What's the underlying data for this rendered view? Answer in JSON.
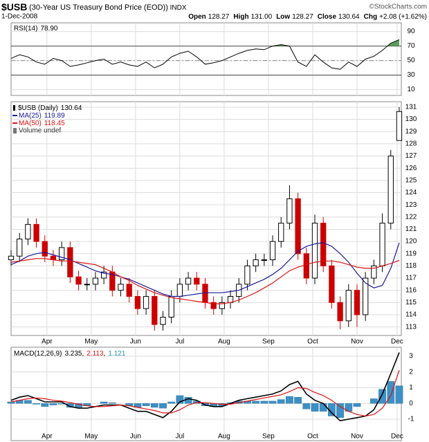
{
  "header": {
    "symbol": "$USB",
    "description": "(30-Year US Treasury Bond Price (EOD))",
    "exchange": "INDX",
    "credit": "©StockCharts.com",
    "date": "1-Dec-2008",
    "quote": [
      {
        "label": "Open",
        "value": "128.27"
      },
      {
        "label": "High",
        "value": "131.00"
      },
      {
        "label": "Low",
        "value": "128.27"
      },
      {
        "label": "Close",
        "value": "130.64"
      },
      {
        "label": "Chg",
        "value": "+2.08 (+1.62%)"
      }
    ]
  },
  "chart_data": [
    {
      "type": "line",
      "legend": "RSI(14)",
      "value_label": "78.90",
      "x": [
        0,
        4,
        8,
        12,
        16,
        20,
        24,
        28,
        32,
        36,
        40,
        44,
        48,
        52,
        56,
        60,
        64,
        68,
        72,
        76,
        80,
        84,
        88,
        92,
        96,
        100,
        104,
        108,
        112,
        116,
        120,
        124,
        128,
        132,
        136,
        140,
        144,
        148,
        152,
        156,
        160,
        164,
        168,
        172,
        176,
        180,
        184
      ],
      "xlim": [
        0,
        185
      ],
      "xticks": [
        17,
        38,
        59,
        80,
        101,
        122,
        143,
        164,
        183
      ],
      "ylim": [
        2,
        102
      ],
      "yticks": [
        10,
        30,
        50,
        70,
        90
      ],
      "grid": true,
      "ref_lines": [
        {
          "value": 70,
          "style": "solid"
        },
        {
          "value": 50,
          "style": "dashed"
        },
        {
          "value": 30,
          "style": "solid"
        }
      ],
      "overbought_fill": "#5c9e5c",
      "series": [
        {
          "color": "#000000",
          "values": [
            53,
            58,
            55,
            48,
            45,
            53,
            50,
            42,
            44,
            47,
            50,
            52,
            45,
            48,
            44,
            42,
            48,
            40,
            45,
            55,
            60,
            63,
            55,
            45,
            47,
            50,
            55,
            60,
            64,
            66,
            65,
            70,
            72,
            70,
            48,
            42,
            58,
            48,
            40,
            38,
            48,
            42,
            52,
            56,
            64,
            74,
            78.9
          ]
        }
      ]
    },
    {
      "type": "candlestick",
      "legend": "$USB (Daily)",
      "volume_label": "Volume undef",
      "x": [
        0,
        4,
        8,
        12,
        16,
        20,
        24,
        28,
        32,
        36,
        40,
        44,
        48,
        52,
        56,
        60,
        64,
        68,
        72,
        76,
        80,
        84,
        88,
        92,
        96,
        100,
        104,
        108,
        112,
        116,
        120,
        124,
        128,
        132,
        136,
        140,
        144,
        148,
        152,
        156,
        160,
        164,
        168,
        172,
        176,
        180,
        184
      ],
      "xlim": [
        0,
        185
      ],
      "xticks": [
        {
          "value": 17,
          "label": "Apr"
        },
        {
          "value": 38,
          "label": "May"
        },
        {
          "value": 59,
          "label": "Jun"
        },
        {
          "value": 80,
          "label": "Jul"
        },
        {
          "value": 101,
          "label": "Aug"
        },
        {
          "value": 122,
          "label": "Sep"
        },
        {
          "value": 143,
          "label": "Oct"
        },
        {
          "value": 164,
          "label": "Nov"
        },
        {
          "value": 183,
          "label": "Dec"
        }
      ],
      "ylim": [
        112.3,
        131.45
      ],
      "yticks": [
        113,
        114,
        115,
        116,
        117,
        118,
        119,
        120,
        121,
        122,
        123,
        124,
        125,
        126,
        127,
        128,
        129,
        130,
        131
      ],
      "grid": true,
      "up_color": "#000000",
      "down_color": "#cc0000",
      "open": [
        118.5,
        118.8,
        120.2,
        121.4,
        120,
        118.8,
        118.5,
        119.5,
        117.1,
        116.5,
        116.5,
        117,
        117.5,
        116,
        116.5,
        115.5,
        114.5,
        115.5,
        113.2,
        113.8,
        115.5,
        116.5,
        117,
        116.5,
        115,
        114.5,
        115,
        115.5,
        116.5,
        118,
        118.5,
        118.5,
        120,
        121.5,
        123.5,
        119,
        117,
        121.5,
        118,
        115,
        113.5,
        116,
        114,
        117,
        118,
        121.5,
        128.27
      ],
      "high": [
        119.3,
        120.7,
        121.9,
        121.9,
        120.5,
        119.3,
        120,
        120,
        117.6,
        117,
        117.5,
        118,
        118,
        117,
        117,
        116,
        116,
        116,
        114.3,
        116,
        117,
        117.5,
        117.5,
        117,
        115.5,
        115.5,
        116,
        117,
        118.5,
        119,
        119,
        120.5,
        122,
        124.6,
        124,
        119.5,
        122.2,
        122,
        118.5,
        115.5,
        116.5,
        116.5,
        117.5,
        118.5,
        122.3,
        127.5,
        131
      ],
      "low": [
        118,
        118.3,
        119.7,
        119.5,
        118.3,
        118,
        118,
        116.6,
        116,
        116,
        116,
        116.5,
        115.5,
        115.5,
        115,
        114,
        114,
        112.7,
        112.7,
        113.3,
        115,
        116,
        116,
        114.5,
        114,
        114,
        114.5,
        115,
        116,
        117.5,
        118,
        118,
        119.5,
        121,
        118.5,
        116.5,
        116.5,
        117.5,
        114.5,
        112.8,
        113,
        113,
        113.5,
        116.5,
        117.5,
        121,
        128.27
      ],
      "close": [
        118.8,
        120.2,
        121.4,
        120,
        118.8,
        118.5,
        119.5,
        117.1,
        116.5,
        116.5,
        117,
        117.5,
        116,
        116.5,
        115.5,
        114.5,
        115.5,
        113.2,
        113.8,
        115.5,
        116.5,
        117,
        116.5,
        115,
        114.5,
        115,
        115.5,
        116.5,
        118,
        118.5,
        118.5,
        120,
        121.5,
        123.5,
        119,
        117,
        121.5,
        118,
        115,
        113.5,
        116,
        114,
        117,
        118,
        121.5,
        127,
        130.64
      ],
      "series": [
        {
          "name": "MA(25)",
          "color": "#1a1a99",
          "values": [
            118.1,
            118.4,
            118.8,
            119.0,
            119.1,
            118.9,
            118.7,
            118.5,
            118.2,
            117.9,
            117.6,
            117.4,
            117.3,
            117.1,
            116.9,
            116.6,
            116.3,
            116.0,
            115.7,
            115.5,
            115.5,
            115.6,
            115.7,
            115.8,
            115.8,
            115.8,
            115.9,
            116.0,
            116.3,
            116.6,
            116.9,
            117.3,
            117.8,
            118.5,
            119.2,
            119.6,
            119.8,
            119.9,
            119.6,
            119.0,
            118.3,
            117.4,
            116.6,
            116.2,
            116.4,
            117.8,
            119.89
          ]
        },
        {
          "name": "MA(50)",
          "color": "#dd1111",
          "values": [
            118.3,
            118.4,
            118.5,
            118.6,
            118.6,
            118.5,
            118.4,
            118.4,
            118.3,
            118.2,
            118.1,
            117.8,
            117.5,
            117.1,
            116.8,
            116.4,
            116.1,
            115.8,
            115.6,
            115.4,
            115.3,
            115.2,
            115.1,
            115.0,
            114.9,
            114.9,
            115.0,
            115.2,
            115.5,
            115.8,
            116.2,
            116.6,
            117.1,
            117.6,
            117.9,
            118.1,
            118.3,
            118.4,
            118.4,
            118.3,
            118.1,
            117.9,
            117.8,
            117.8,
            118.0,
            118.2,
            118.45
          ]
        }
      ]
    },
    {
      "type": "macd",
      "legend": "MACD(12,26,9)",
      "separator": ",",
      "x": [
        0,
        4,
        8,
        12,
        16,
        20,
        24,
        28,
        32,
        36,
        40,
        44,
        48,
        52,
        56,
        60,
        64,
        68,
        72,
        76,
        80,
        84,
        88,
        92,
        96,
        100,
        104,
        108,
        112,
        116,
        120,
        124,
        128,
        132,
        136,
        140,
        144,
        148,
        152,
        156,
        160,
        164,
        168,
        172,
        176,
        180,
        184
      ],
      "xlim": [
        0,
        185
      ],
      "xticks": [
        {
          "value": 17,
          "label": "Apr"
        },
        {
          "value": 38,
          "label": "May"
        },
        {
          "value": 59,
          "label": "Jun"
        },
        {
          "value": 80,
          "label": "Jul"
        },
        {
          "value": 101,
          "label": "Aug"
        },
        {
          "value": 122,
          "label": "Sep"
        },
        {
          "value": 143,
          "label": "Oct"
        },
        {
          "value": 164,
          "label": "Nov"
        },
        {
          "value": 183,
          "label": "Dec"
        }
      ],
      "ylim": [
        -2.36,
        3.57
      ],
      "yticks": [
        -1,
        0,
        1,
        2,
        3
      ],
      "grid": true,
      "series": [
        {
          "kind": "bar",
          "color": "#3d8fc4",
          "label_color": "#1f9a9a",
          "values": [
            0.1,
            0.2,
            0.2,
            -0.05,
            -0.2,
            -0.1,
            -0.05,
            -0.25,
            -0.25,
            -0.15,
            0.0,
            0.1,
            0.05,
            0.0,
            -0.15,
            -0.25,
            -0.15,
            -0.25,
            -0.3,
            0.1,
            0.5,
            0.4,
            0.15,
            -0.15,
            -0.2,
            -0.15,
            0.05,
            0.15,
            0.15,
            0.15,
            0.15,
            0.15,
            0.25,
            0.45,
            0.4,
            -0.35,
            -0.5,
            -0.5,
            -0.8,
            -0.9,
            -0.5,
            -0.2,
            0.0,
            0.3,
            0.9,
            1.4,
            1.121
          ]
        },
        {
          "kind": "line",
          "color": "#000000",
          "values": [
            0.2,
            0.4,
            0.5,
            0.3,
            0.1,
            0.1,
            0.1,
            -0.2,
            -0.3,
            -0.3,
            -0.2,
            -0.1,
            -0.1,
            -0.1,
            -0.3,
            -0.5,
            -0.5,
            -0.7,
            -0.9,
            -0.5,
            0.1,
            0.3,
            0.2,
            -0.1,
            -0.2,
            -0.2,
            0.0,
            0.2,
            0.3,
            0.4,
            0.5,
            0.6,
            0.8,
            1.2,
            1.4,
            0.6,
            0.2,
            0.0,
            -0.6,
            -1.1,
            -1.0,
            -0.9,
            -0.8,
            -0.4,
            0.6,
            1.9,
            3.235
          ]
        },
        {
          "kind": "line",
          "color": "#dd1111",
          "values": [
            0.1,
            0.2,
            0.3,
            0.35,
            0.3,
            0.2,
            0.15,
            0.05,
            -0.05,
            -0.15,
            -0.2,
            -0.2,
            -0.15,
            -0.1,
            -0.15,
            -0.25,
            -0.35,
            -0.45,
            -0.6,
            -0.6,
            -0.4,
            -0.1,
            0.05,
            0.05,
            0.0,
            -0.05,
            -0.05,
            0.05,
            0.15,
            0.25,
            0.35,
            0.45,
            0.55,
            0.75,
            1.0,
            0.95,
            0.7,
            0.5,
            0.2,
            -0.2,
            -0.5,
            -0.7,
            -0.8,
            -0.7,
            -0.3,
            0.5,
            2.113
          ]
        }
      ]
    }
  ]
}
